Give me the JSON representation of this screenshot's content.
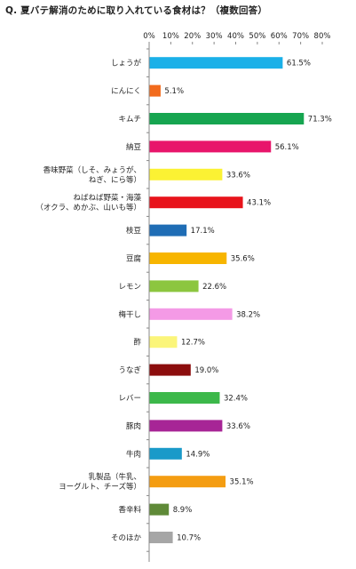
{
  "chart_data": {
    "type": "bar",
    "orientation": "horizontal",
    "title": "Q. 夏バテ解消のために取り入れている食材は？（複数回答）",
    "xlim": [
      0,
      80
    ],
    "ticks": [
      "0%",
      "10%",
      "20%",
      "30%",
      "40%",
      "50%",
      "60%",
      "70%",
      "80%"
    ],
    "grid": false,
    "categories": [
      [
        "しょうが"
      ],
      [
        "にんにく"
      ],
      [
        "キムチ"
      ],
      [
        "納豆"
      ],
      [
        "香味野菜（しそ、みょうが、",
        "ねぎ、にら等）"
      ],
      [
        "ねばねば野菜・海藻",
        "（オクラ、めかぶ、山いも等）"
      ],
      [
        "枝豆"
      ],
      [
        "豆腐"
      ],
      [
        "レモン"
      ],
      [
        "梅干し"
      ],
      [
        "酢"
      ],
      [
        "うなぎ"
      ],
      [
        "レバー"
      ],
      [
        "豚肉"
      ],
      [
        "牛肉"
      ],
      [
        "乳製品（牛乳、",
        "ヨーグルト、チーズ等）"
      ],
      [
        "香辛料"
      ],
      [
        "そのほか"
      ]
    ],
    "values": [
      61.5,
      5.1,
      71.3,
      56.1,
      33.6,
      43.1,
      17.1,
      35.6,
      22.6,
      38.2,
      12.7,
      19.0,
      32.4,
      33.6,
      14.9,
      35.1,
      8.9,
      10.7
    ],
    "value_labels": [
      "61.5%",
      "5.1%",
      "71.3%",
      "56.1%",
      "33.6%",
      "43.1%",
      "17.1%",
      "35.6%",
      "22.6%",
      "38.2%",
      "12.7%",
      "19.0%",
      "32.4%",
      "33.6%",
      "14.9%",
      "35.1%",
      "8.9%",
      "10.7%"
    ],
    "colors": [
      "#1ab0e8",
      "#f26b1d",
      "#16a550",
      "#e8156b",
      "#fbf233",
      "#e8131b",
      "#1f6db5",
      "#f7b500",
      "#8cc63f",
      "#f49ae6",
      "#fbf57a",
      "#8c0d0d",
      "#3cb84a",
      "#a72596",
      "#1a9ac9",
      "#f49d12",
      "#5f8a38",
      "#a6a6a6"
    ]
  }
}
